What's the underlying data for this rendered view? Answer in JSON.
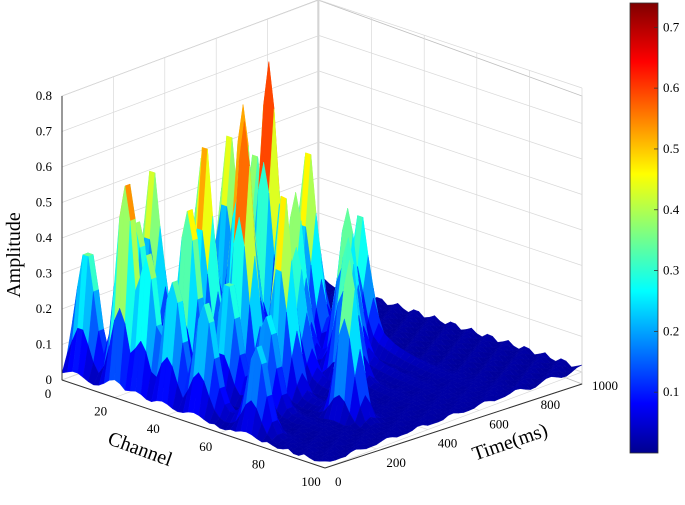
{
  "chart_data": {
    "type": "surface",
    "title": "",
    "xlabel": "Channel",
    "ylabel": "Time(ms)",
    "zlabel": "Amplitude",
    "xlim": [
      0,
      100
    ],
    "ylim": [
      0,
      1000
    ],
    "zlim": [
      0,
      0.8
    ],
    "x_ticks": [
      "0",
      "20",
      "40",
      "60",
      "80",
      "100"
    ],
    "y_ticks": [
      "0",
      "200",
      "400",
      "600",
      "800",
      "1000"
    ],
    "z_ticks": [
      "0",
      "0.1",
      "0.2",
      "0.3",
      "0.4",
      "0.5",
      "0.6",
      "0.7",
      "0.8"
    ],
    "grid": true,
    "colormap": "jet",
    "colorbar": {
      "placement": "right",
      "range": [
        0,
        0.74
      ],
      "ticks": [
        "0.1",
        "0.2",
        "0.3",
        "0.4",
        "0.5",
        "0.6",
        "0.7"
      ]
    },
    "colors": [
      "#00008f",
      "#0000ff",
      "#00ffff",
      "#ffff00",
      "#ff0000",
      "#800000"
    ],
    "peak_ridges": [
      {
        "time_ms": 50,
        "peaks": [
          [
            5,
            0.36
          ],
          [
            20,
            0.62
          ],
          [
            28,
            0.41
          ],
          [
            38,
            0.35
          ],
          [
            50,
            0.31
          ],
          [
            70,
            0.26
          ]
        ]
      },
      {
        "time_ms": 190,
        "peaks": [
          [
            10,
            0.42
          ],
          [
            30,
            0.52
          ],
          [
            45,
            0.33
          ],
          [
            60,
            0.27
          ]
        ]
      },
      {
        "time_ms": 300,
        "peaks": [
          [
            5,
            0.5
          ],
          [
            25,
            0.63
          ],
          [
            40,
            0.72
          ],
          [
            55,
            0.56
          ],
          [
            80,
            0.44
          ]
        ]
      },
      {
        "time_ms": 400,
        "peaks": [
          [
            10,
            0.33
          ],
          [
            30,
            0.45
          ],
          [
            50,
            0.34
          ]
        ]
      },
      {
        "time_ms": 500,
        "peaks": [
          [
            5,
            0.48
          ],
          [
            20,
            0.66
          ],
          [
            40,
            0.45
          ],
          [
            60,
            0.38
          ]
        ]
      },
      {
        "time_ms": 600,
        "peaks": [
          [
            5,
            0.52
          ],
          [
            20,
            0.76
          ],
          [
            35,
            0.55
          ],
          [
            50,
            0.4
          ]
        ]
      },
      {
        "time_ms": 700,
        "peaks": [
          [
            5,
            0.43
          ],
          [
            25,
            0.48
          ],
          [
            45,
            0.35
          ]
        ]
      }
    ]
  }
}
